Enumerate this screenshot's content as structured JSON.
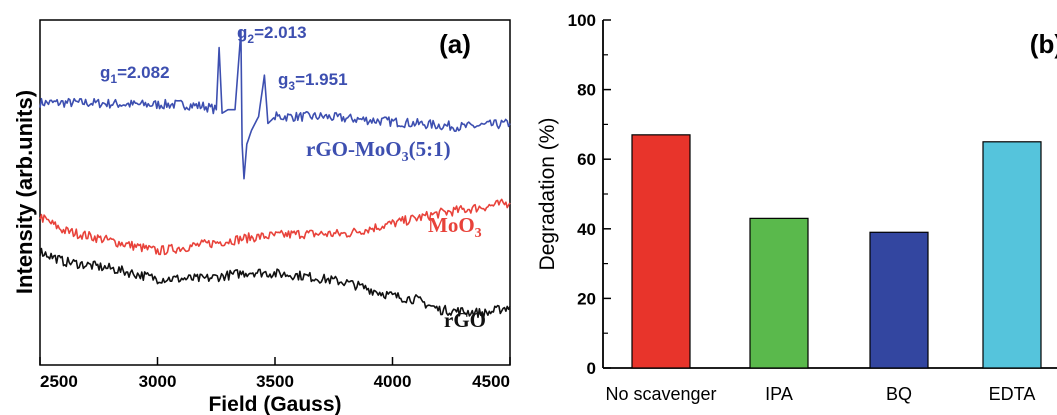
{
  "chart_data": [
    {
      "type": "line",
      "panel_label": "(a)",
      "xlabel": "Field (Gauss)",
      "ylabel": "Intensity (arb.units)",
      "xlim": [
        2500,
        4500
      ],
      "x_ticks": [
        "2500",
        "3000",
        "3500",
        "4000",
        "4500"
      ],
      "grid": false,
      "series": [
        {
          "name": "rGO-MoO3(5:1)",
          "color": "#3d4fb0",
          "x": [
            2500,
            2700,
            2900,
            3100,
            3200,
            3250,
            3262,
            3275,
            3300,
            3330,
            3355,
            3360,
            3368,
            3380,
            3400,
            3430,
            3455,
            3470,
            3485,
            3500,
            3700,
            3900,
            4100,
            4300,
            4500
          ],
          "y": [
            0.76,
            0.76,
            0.755,
            0.755,
            0.75,
            0.74,
            0.92,
            0.73,
            0.74,
            0.74,
            0.97,
            0.64,
            0.54,
            0.64,
            0.68,
            0.72,
            0.84,
            0.7,
            0.71,
            0.72,
            0.72,
            0.71,
            0.7,
            0.69,
            0.7
          ]
        },
        {
          "name": "MoO3",
          "color": "#e8423a",
          "x": [
            2500,
            2600,
            2800,
            3000,
            3200,
            3400,
            3600,
            3800,
            4000,
            4200,
            4400,
            4500
          ],
          "y": [
            0.43,
            0.39,
            0.36,
            0.33,
            0.35,
            0.37,
            0.38,
            0.38,
            0.41,
            0.44,
            0.46,
            0.47
          ]
        },
        {
          "name": "rGO",
          "color": "#111111",
          "x": [
            2500,
            2600,
            2800,
            3000,
            3200,
            3400,
            3600,
            3800,
            4000,
            4100,
            4200,
            4400,
            4500
          ],
          "y": [
            0.33,
            0.3,
            0.28,
            0.25,
            0.25,
            0.27,
            0.26,
            0.24,
            0.2,
            0.19,
            0.16,
            0.15,
            0.17
          ]
        }
      ],
      "annotations": {
        "g1": {
          "sub": "1",
          "value": "=2.082"
        },
        "g2": {
          "sub": "2",
          "value": "=2.013"
        },
        "g3": {
          "sub": "3",
          "value": "=1.951"
        }
      },
      "series_labels": {
        "rgo_moo3": {
          "main": "rGO-MoO",
          "sub": "3",
          "tail": "(5:1)"
        },
        "moo3": {
          "main": "MoO",
          "sub": "3"
        },
        "rgo": {
          "main": "rGO"
        }
      }
    },
    {
      "type": "bar",
      "panel_label": "(b)",
      "ylabel": "Degradation (%)",
      "ylim": [
        0,
        100
      ],
      "y_ticks": [
        "0",
        "20",
        "40",
        "60",
        "80",
        "100"
      ],
      "categories": [
        "No scavenger",
        "IPA",
        "BQ",
        "EDTA"
      ],
      "values": [
        67,
        43,
        39,
        65
      ],
      "colors": [
        "#e8342b",
        "#5ab94c",
        "#3346a0",
        "#55c4dc"
      ],
      "grid": false
    }
  ]
}
